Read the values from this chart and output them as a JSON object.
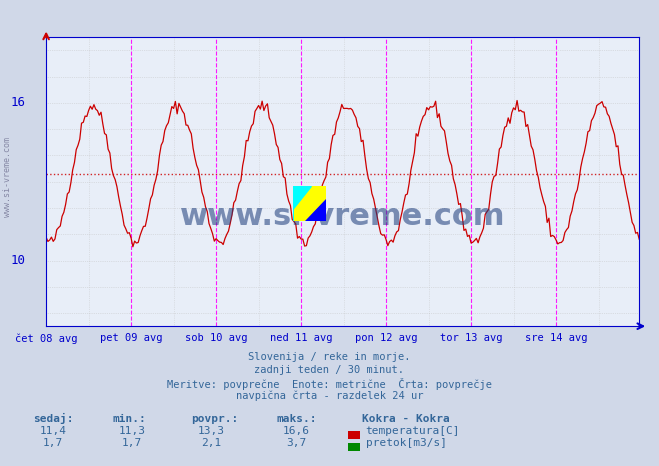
{
  "title": "Kokra - Kokra",
  "title_color": "#0000cc",
  "bg_color": "#d0d8e8",
  "plot_bg_color": "#e8eef8",
  "x_labels": [
    "čet 08 avg",
    "pet 09 avg",
    "sob 10 avg",
    "ned 11 avg",
    "pon 12 avg",
    "tor 13 avg",
    "sre 14 avg"
  ],
  "x_ticks": [
    0,
    48,
    96,
    144,
    192,
    240,
    288
  ],
  "total_points": 336,
  "temp_avg_line": 13.3,
  "flow_avg_line": 2.1,
  "grid_color": "#c0c0c0",
  "grid_dotted_color": "#ff9999",
  "temp_color": "#cc0000",
  "flow_color": "#008800",
  "vline_color": "#ff00ff",
  "axis_color": "#0000cc",
  "watermark_text": "www.si-vreme.com",
  "watermark_color": "#1a3a7a",
  "bottom_text_lines": [
    "Slovenija / reke in morje.",
    "zadnji teden / 30 minut.",
    "Meritve: povprečne  Enote: metrične  Črta: povprečje",
    "navpična črta - razdelek 24 ur"
  ],
  "bottom_text_color": "#336699",
  "legend_title": "Kokra - Kokra",
  "legend_items": [
    {
      "label": "temperatura[C]",
      "color": "#cc0000"
    },
    {
      "label": "pretok[m3/s]",
      "color": "#008800"
    }
  ],
  "stats_headers": [
    "sedaj:",
    "min.:",
    "povpr.:",
    "maks.:"
  ],
  "stats_temp": [
    11.4,
    11.3,
    13.3,
    16.6
  ],
  "stats_flow": [
    1.7,
    1.7,
    2.1,
    3.7
  ]
}
